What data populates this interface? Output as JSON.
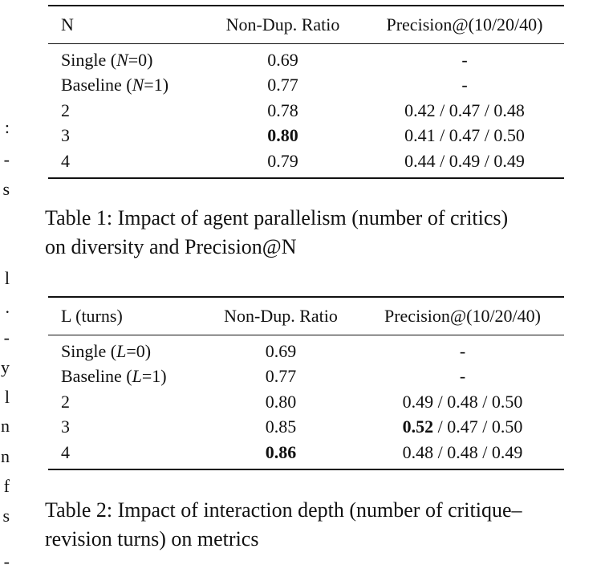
{
  "left_margin_fragments": [
    ":",
    "-",
    "s",
    "l",
    ".",
    "-",
    "y",
    "l",
    "n",
    "n",
    "f",
    "s",
    "-"
  ],
  "table1": {
    "headers": [
      "N",
      "Non-Dup. Ratio",
      "Precision@(10/20/40)"
    ],
    "rows": [
      {
        "label": "Single (",
        "var": "N",
        "cond": "=0)",
        "ratio": "0.69",
        "ratio_bold": false,
        "p_bold": "",
        "p_rest": "-"
      },
      {
        "label": "Baseline (",
        "var": "N",
        "cond": "=1)",
        "ratio": "0.77",
        "ratio_bold": false,
        "p_bold": "",
        "p_rest": "-"
      },
      {
        "label": "2",
        "var": "",
        "cond": "",
        "ratio": "0.78",
        "ratio_bold": false,
        "p_bold": "",
        "p_rest": "0.42 / 0.47 / 0.48"
      },
      {
        "label": "3",
        "var": "",
        "cond": "",
        "ratio": "0.80",
        "ratio_bold": true,
        "p_bold": "",
        "p_rest": "0.41 / 0.47 / 0.50"
      },
      {
        "label": "4",
        "var": "",
        "cond": "",
        "ratio": "0.79",
        "ratio_bold": false,
        "p_bold": "",
        "p_rest": "0.44 / 0.49 / 0.49"
      }
    ],
    "caption_line1": "Table 1: Impact of agent parallelism (number of critics)",
    "caption_line2": "on diversity and Precision@N"
  },
  "table2": {
    "headers": [
      "L (turns)",
      "Non-Dup. Ratio",
      "Precision@(10/20/40)"
    ],
    "rows": [
      {
        "label": "Single (",
        "var": "L",
        "cond": "=0)",
        "ratio": "0.69",
        "ratio_bold": false,
        "p_bold": "",
        "p_rest": "-"
      },
      {
        "label": "Baseline (",
        "var": "L",
        "cond": "=1)",
        "ratio": "0.77",
        "ratio_bold": false,
        "p_bold": "",
        "p_rest": "-"
      },
      {
        "label": "2",
        "var": "",
        "cond": "",
        "ratio": "0.80",
        "ratio_bold": false,
        "p_bold": "",
        "p_rest": "0.49 / 0.48 / 0.50"
      },
      {
        "label": "3",
        "var": "",
        "cond": "",
        "ratio": "0.85",
        "ratio_bold": false,
        "p_bold": "0.52",
        "p_rest": " / 0.47 / 0.50"
      },
      {
        "label": "4",
        "var": "",
        "cond": "",
        "ratio": "0.86",
        "ratio_bold": true,
        "p_bold": "",
        "p_rest": "0.48 / 0.48 / 0.49"
      }
    ],
    "caption_line1": "Table 2: Impact of interaction depth (number of critique–",
    "caption_line2": "revision turns) on metrics"
  }
}
